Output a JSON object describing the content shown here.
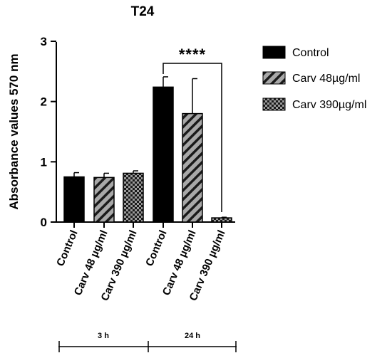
{
  "chart_data": {
    "type": "bar",
    "title": "T24",
    "ylabel": "Absorbance values 570 nm",
    "xlabel": "",
    "ylim": [
      0,
      3
    ],
    "yticks": [
      "0",
      "1",
      "2",
      "3"
    ],
    "grid": false,
    "legend_position": "right",
    "categories": [
      "Control",
      "Carv 48 µg/ml",
      "Carv 390 µg/ml",
      "Control",
      "Carv 48 µg/ml",
      "Carv 390 µg/ml"
    ],
    "groups": [
      {
        "label": "3 h",
        "indices": [
          0,
          1,
          2
        ]
      },
      {
        "label": "24 h",
        "indices": [
          3,
          4,
          5
        ]
      }
    ],
    "series": [
      {
        "name": "Control",
        "pattern": "solid",
        "color": "#000000",
        "values": [
          0.75,
          null,
          null,
          2.24,
          null,
          null
        ],
        "errors": [
          0.07,
          null,
          null,
          0.17,
          null,
          null
        ]
      },
      {
        "name": "Carv 48µg/ml",
        "pattern": "diagonal-stripes",
        "color": "#9a9a9a",
        "values": [
          null,
          0.74,
          null,
          null,
          1.8,
          null
        ],
        "errors": [
          null,
          0.07,
          null,
          null,
          0.58,
          null
        ]
      },
      {
        "name": "Carv 390µg/ml",
        "pattern": "checkerboard",
        "color": "#7a7a7a",
        "values": [
          null,
          null,
          0.81,
          null,
          null,
          0.07
        ],
        "errors": [
          null,
          null,
          0.04,
          null,
          null,
          0.01
        ]
      }
    ],
    "annotations": [
      {
        "text": "****",
        "from_index": 3,
        "to_index": 5
      }
    ]
  }
}
